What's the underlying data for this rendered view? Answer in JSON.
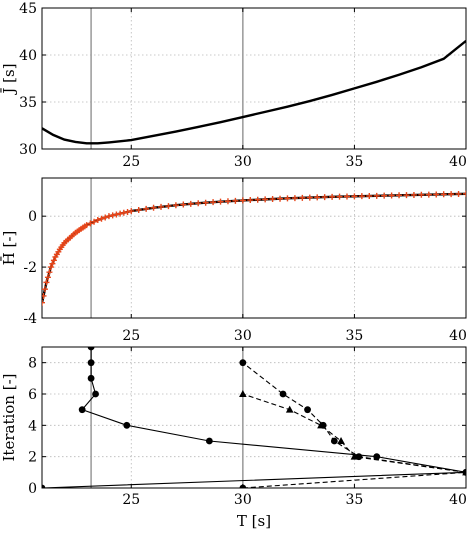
{
  "chart_data": [
    {
      "type": "line",
      "xlim": [
        21,
        40
      ],
      "ylim": [
        30,
        45
      ],
      "xticks": [
        25,
        30,
        35,
        40
      ],
      "yticks": [
        30,
        35,
        40,
        45
      ],
      "ylabel": "J̄ [s]",
      "grid": true,
      "vlines": [
        23.2,
        30
      ],
      "series": [
        {
          "x": [
            21,
            21.5,
            22,
            22.5,
            23,
            23.5,
            24,
            25,
            26,
            27,
            28,
            29,
            30,
            31,
            32,
            33,
            34,
            35,
            36,
            37,
            38,
            39,
            40
          ],
          "y": [
            32.2,
            31.5,
            31.0,
            30.75,
            30.6,
            30.6,
            30.7,
            30.95,
            31.4,
            31.85,
            32.35,
            32.85,
            33.4,
            33.95,
            34.5,
            35.1,
            35.75,
            36.45,
            37.15,
            37.9,
            38.7,
            39.6,
            41.5
          ]
        }
      ]
    },
    {
      "type": "line",
      "xlim": [
        21,
        40
      ],
      "ylim": [
        -4,
        1.5
      ],
      "yticks": [
        -4,
        -2,
        0
      ],
      "ylabel": "H̄ [-]",
      "grid": true,
      "vlines": [
        23.2,
        30
      ],
      "series": [
        {
          "x": [
            21,
            21.2,
            21.4,
            21.6,
            21.8,
            22,
            22.25,
            22.5,
            22.75,
            23,
            23.5,
            24,
            24.5,
            25,
            26,
            27,
            28,
            29,
            30,
            31,
            32,
            33,
            34,
            35,
            36,
            37,
            38,
            39,
            40
          ],
          "y": [
            -3.4,
            -2.6,
            -2.0,
            -1.6,
            -1.3,
            -1.05,
            -0.85,
            -0.65,
            -0.5,
            -0.35,
            -0.15,
            0.0,
            0.1,
            0.2,
            0.33,
            0.43,
            0.51,
            0.57,
            0.62,
            0.66,
            0.7,
            0.73,
            0.76,
            0.78,
            0.8,
            0.82,
            0.84,
            0.86,
            0.88
          ],
          "color": "#000000",
          "markers": "orange-plus"
        }
      ]
    },
    {
      "type": "line",
      "xlim": [
        21,
        40
      ],
      "ylim": [
        0,
        9
      ],
      "xticks": [
        25,
        30,
        35,
        40
      ],
      "yticks": [
        0,
        2,
        4,
        6,
        8
      ],
      "xlabel": "T [s]",
      "ylabel": "Iteration [-]",
      "grid": true,
      "vlines": [
        23.2,
        30
      ],
      "series": [
        {
          "style": "solid",
          "marker": "circle",
          "x": [
            21,
            40,
            36,
            28.5,
            24.8,
            22.8,
            23.4,
            23.2,
            23.2,
            23.2
          ],
          "y": [
            0,
            1,
            2,
            3,
            4,
            5,
            6,
            7,
            8,
            9
          ]
        },
        {
          "style": "dashed",
          "marker": "circle",
          "x": [
            30,
            40,
            35.2,
            34.1,
            33.6,
            32.9,
            31.8,
            30
          ],
          "y": [
            0,
            1,
            2,
            3,
            4,
            5,
            6,
            8
          ]
        },
        {
          "style": "dashed",
          "marker": "triangle",
          "x": [
            40,
            35.0,
            34.4,
            33.5,
            32.1,
            30
          ],
          "y": [
            1,
            2,
            3,
            4,
            5,
            6
          ]
        }
      ]
    }
  ]
}
